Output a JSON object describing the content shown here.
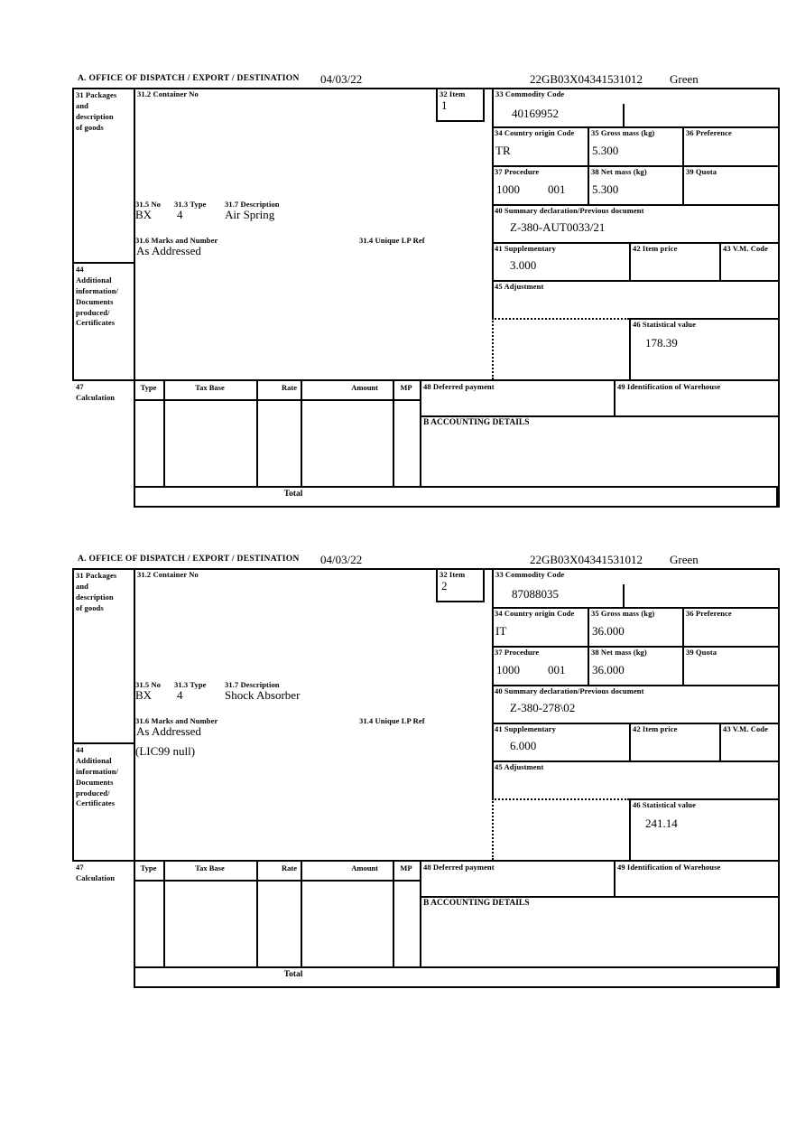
{
  "header": {
    "office_label": "A.  OFFICE OF DISPATCH / EXPORT / DESTINATION",
    "date": "04/03/22",
    "reference": "22GB03X04341531012",
    "status": "Green"
  },
  "labels": {
    "box31": "31 Packages\nand\ndescription\nof goods",
    "box31_2": "31.2 Container No",
    "box32": "32 Item",
    "box33": "33 Commodity Code",
    "box34": "34 Country origin Code",
    "box35": "35 Gross mass (kg)",
    "box36": "36 Preference",
    "box37": "37 Procedure",
    "box38": "38 Net mass (kg)",
    "box39": "39 Quota",
    "box40": "40 Summary declaration/Previous document",
    "box41": "41 Supplementary",
    "box42": "42 Item price",
    "box43": "43 V.M. Code",
    "box44": "44\nAdditional\ninformation/\nDocuments\nproduced/\nCertificates",
    "box45": "45 Adjustment",
    "box46": "46 Statistical value",
    "box47": "47\nCalculation",
    "box48": "48 Deferred payment",
    "box49": "49 Identification of Warehouse",
    "box31_5": "31.5 No",
    "box31_3": "31.3 Type",
    "box31_7": "31.7 Description",
    "box31_6": "31.6 Marks and Number",
    "box31_4": "31.4 Unique LP Ref",
    "accounting": "B ACCOUNTING DETAILS",
    "total": "Total",
    "calc_columns": [
      "Type",
      "Tax Base",
      "Rate",
      "Amount",
      "MP"
    ]
  },
  "items": [
    {
      "item_no": "1",
      "commodity_code": "40169952",
      "country_origin_code": "TR",
      "gross_mass_kg": "5.300",
      "procedure": "1000",
      "procedure_code": "001",
      "net_mass_kg": "5.300",
      "previous_document": "Z-380-AUT0033/21",
      "supplementary_units": "3.000",
      "statistical_value": "178.39",
      "packages_no": "BX",
      "packages_type": "4",
      "goods_description": "Air Spring",
      "marks_and_number": "As Addressed",
      "additional_information": ""
    },
    {
      "item_no": "2",
      "commodity_code": "87088035",
      "country_origin_code": "IT",
      "gross_mass_kg": "36.000",
      "procedure": "1000",
      "procedure_code": "001",
      "net_mass_kg": "36.000",
      "previous_document": "Z-380-278\\02",
      "supplementary_units": "6.000",
      "statistical_value": "241.14",
      "packages_no": "BX",
      "packages_type": "4",
      "goods_description": "Shock Absorber",
      "marks_and_number": "As Addressed",
      "additional_information": "(LIC99 null)"
    }
  ]
}
